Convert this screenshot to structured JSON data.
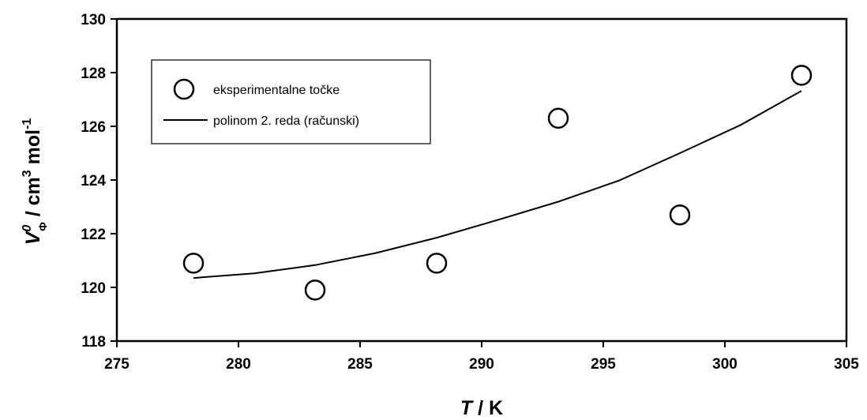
{
  "chart_data": {
    "type": "scatter",
    "xlabel": {
      "italic": "T",
      "rest": " / K"
    },
    "ylabel": {
      "symbol": "V",
      "superscript": "0",
      "subscript": "Φ",
      "rest": " / cm",
      "unit_power": "3",
      "mol": " mol",
      "mol_power": "-1"
    },
    "xlim": [
      275,
      305
    ],
    "ylim": [
      118,
      130
    ],
    "xticks": [
      275,
      280,
      285,
      290,
      295,
      300,
      305
    ],
    "yticks": [
      118,
      120,
      122,
      124,
      126,
      128,
      130
    ],
    "grid": false,
    "legend_position": "top-left",
    "series": [
      {
        "name": "eksperimentalne točke",
        "kind": "scatter",
        "marker": "open-circle",
        "x": [
          278.15,
          283.15,
          288.15,
          293.15,
          298.15,
          303.15
        ],
        "y": [
          120.9,
          119.9,
          120.9,
          126.3,
          122.7,
          127.9
        ]
      },
      {
        "name": "polinom 2. reda (računski)",
        "kind": "line",
        "x": [
          278.15,
          280.65,
          283.15,
          285.65,
          288.15,
          290.65,
          293.15,
          295.65,
          298.15,
          300.65,
          303.15
        ],
        "y": [
          120.35,
          120.52,
          120.83,
          121.28,
          121.85,
          122.51,
          123.19,
          123.98,
          125.0,
          126.05,
          127.32
        ]
      }
    ],
    "colors": {
      "ink": "#000000",
      "background": "#ffffff"
    }
  }
}
